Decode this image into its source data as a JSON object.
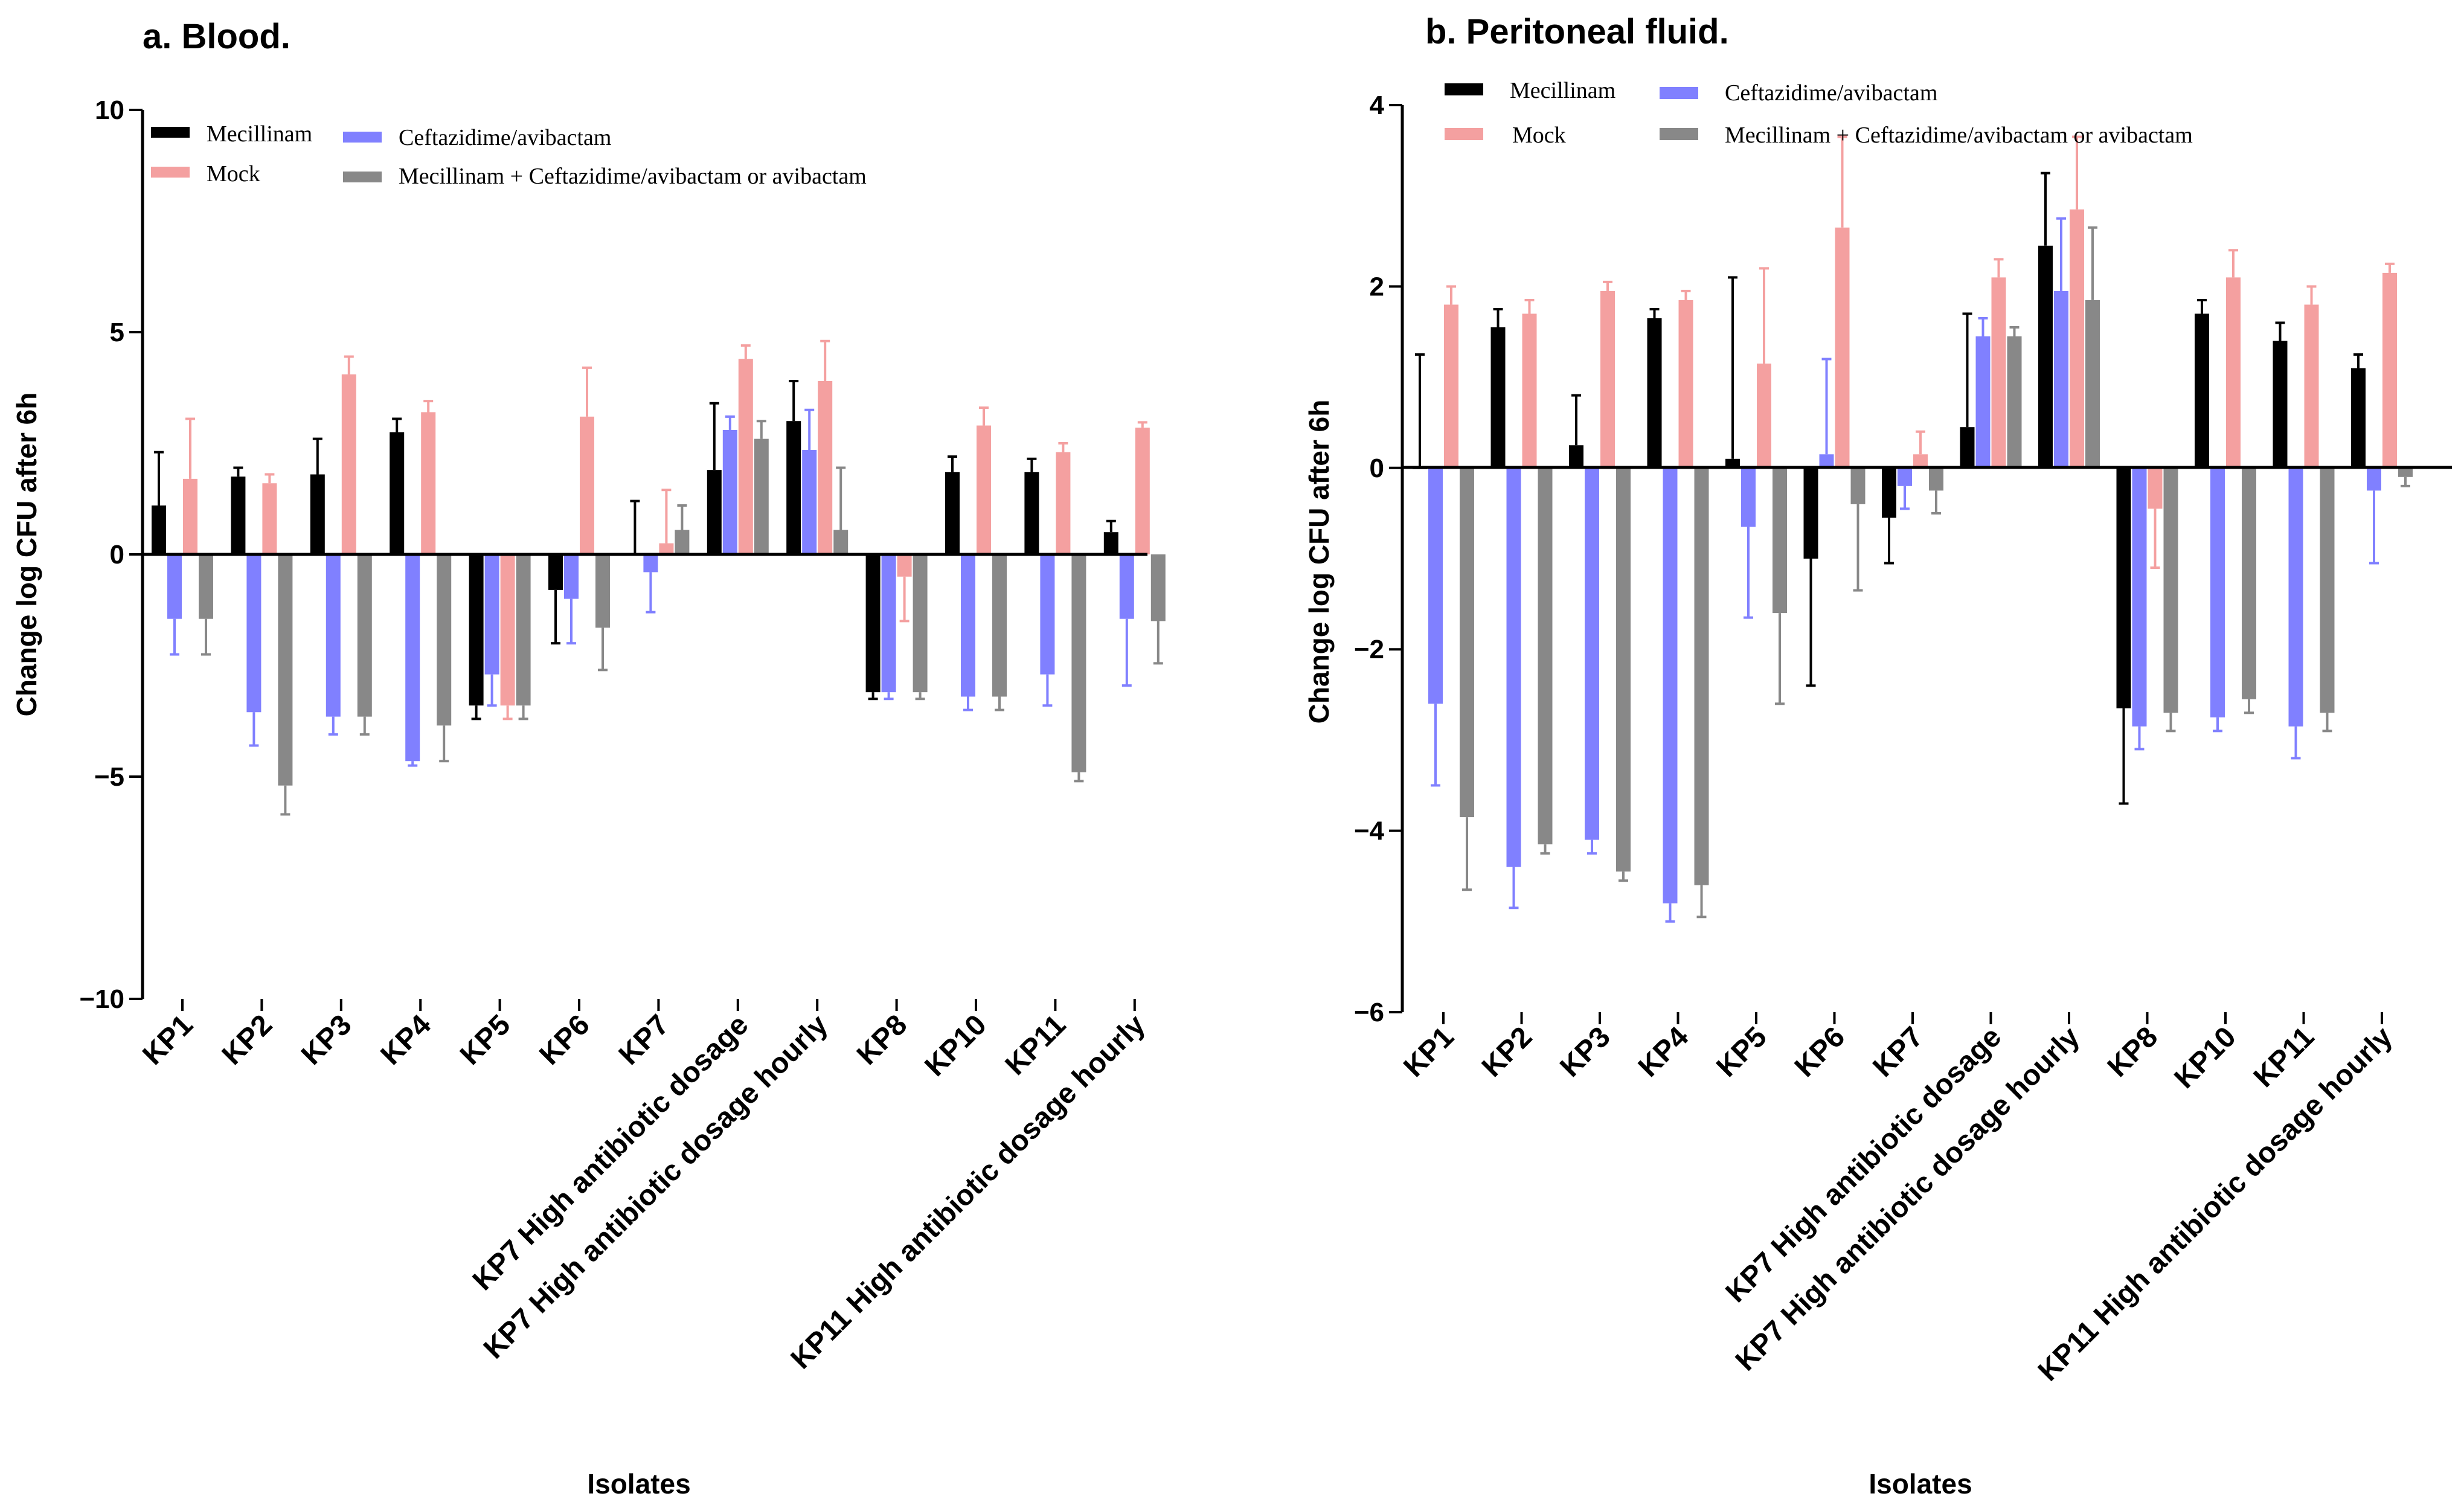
{
  "chart_data": [
    {
      "type": "bar",
      "title": "a. Blood.",
      "xlabel": "Isolates",
      "ylabel": "Change log CFU after 6h",
      "ylim": [
        -10,
        10
      ],
      "yticks": [
        "−10",
        "−5",
        "0",
        "5",
        "10"
      ],
      "ytick_values": [
        -10,
        -5,
        0,
        5,
        10
      ],
      "categories": [
        "KP1",
        "KP2",
        "KP3",
        "KP4",
        "KP5",
        "KP6",
        "KP7",
        "KP7 High antibiotic dosage",
        "KP7 High antibiotic dosage hourly",
        "KP8",
        "KP10",
        "KP11",
        "KP11 High antibiotic dosage hourly"
      ],
      "legend": {
        "position": "top-left",
        "order": [
          "Mecillinam",
          "Ceftazidime/avibactam",
          "Mock",
          "Mecillinam + Ceftazidime/avibactam or avibactam"
        ]
      },
      "series": [
        {
          "name": "Mecillinam",
          "color": "#000000",
          "values": [
            1.1,
            1.75,
            1.8,
            2.75,
            -3.4,
            -0.8,
            0.0,
            1.9,
            3.0,
            -3.1,
            1.85,
            1.85,
            0.5
          ],
          "errors": [
            1.2,
            0.2,
            0.8,
            0.3,
            0.3,
            1.2,
            1.2,
            1.5,
            0.9,
            0.15,
            0.35,
            0.3,
            0.25
          ]
        },
        {
          "name": "Ceftazidime/avibactam",
          "color": "#8080ff",
          "values": [
            -1.45,
            -3.55,
            -3.65,
            -4.65,
            -2.7,
            -1.0,
            -0.4,
            2.8,
            2.35,
            -3.1,
            -3.2,
            -2.7,
            -1.45
          ],
          "errors": [
            0.8,
            0.75,
            0.4,
            0.1,
            0.7,
            1.0,
            0.9,
            0.3,
            0.9,
            0.15,
            0.3,
            0.7,
            1.5
          ]
        },
        {
          "name": "Mock",
          "color": "#f4a0a0",
          "values": [
            1.7,
            1.6,
            4.05,
            3.2,
            -3.4,
            3.1,
            0.25,
            4.4,
            3.9,
            -0.5,
            2.9,
            2.3,
            2.85
          ],
          "errors": [
            1.35,
            0.2,
            0.4,
            0.25,
            0.3,
            1.1,
            1.2,
            0.3,
            0.9,
            1.0,
            0.4,
            0.2,
            0.12
          ]
        },
        {
          "name": "Mecillinam + Ceftazidime/avibactam or avibactam",
          "color": "#888888",
          "values": [
            -1.45,
            -5.2,
            -3.65,
            -3.85,
            -3.4,
            -1.65,
            0.55,
            2.6,
            0.55,
            -3.1,
            -3.2,
            -4.9,
            -1.5
          ],
          "errors": [
            0.8,
            0.65,
            0.4,
            0.8,
            0.3,
            0.95,
            0.55,
            0.4,
            1.4,
            0.15,
            0.3,
            0.2,
            0.95
          ]
        }
      ]
    },
    {
      "type": "bar",
      "title": "b. Peritoneal fluid.",
      "xlabel": "Isolates",
      "ylabel": "Change log CFU after 6h",
      "ylim": [
        -6,
        4
      ],
      "yticks": [
        "−6",
        "−4",
        "−2",
        "0",
        "2",
        "4"
      ],
      "ytick_values": [
        -6,
        -4,
        -2,
        0,
        2,
        4
      ],
      "categories": [
        "KP1",
        "KP2",
        "KP3",
        "KP4",
        "KP5",
        "KP6",
        "KP7",
        "KP7 High antibiotic dosage",
        "KP7 High antibiotic dosage hourly",
        "KP8",
        "KP10",
        "KP11",
        "KP11 High antibiotic dosage hourly"
      ],
      "legend": {
        "position": "top-left",
        "order": [
          "Mecillinam",
          "Ceftazidime/avibactam",
          "Mock",
          "Mecillinam + Ceftazidime/avibactam or avibactam"
        ]
      },
      "series": [
        {
          "name": "Mecillinam",
          "color": "#000000",
          "values": [
            0.0,
            1.55,
            0.25,
            1.65,
            0.1,
            -1.0,
            -0.55,
            0.45,
            2.45,
            -2.65,
            1.7,
            1.4,
            1.1
          ],
          "errors": [
            1.25,
            0.2,
            0.55,
            0.1,
            2.0,
            1.4,
            0.5,
            1.25,
            0.8,
            1.05,
            0.15,
            0.2,
            0.15
          ]
        },
        {
          "name": "Ceftazidime/avibactam",
          "color": "#8080ff",
          "values": [
            -2.6,
            -4.4,
            -4.1,
            -4.8,
            -0.65,
            0.15,
            -0.2,
            1.45,
            1.95,
            -2.85,
            -2.75,
            -2.85,
            -0.25
          ],
          "errors": [
            0.9,
            0.45,
            0.15,
            0.2,
            1.0,
            1.05,
            0.25,
            0.2,
            0.8,
            0.25,
            0.15,
            0.35,
            0.8
          ]
        },
        {
          "name": "Mock",
          "color": "#f4a0a0",
          "values": [
            1.8,
            1.7,
            1.95,
            1.85,
            1.15,
            2.65,
            0.15,
            2.1,
            2.85,
            -0.45,
            2.1,
            1.8,
            2.15
          ],
          "errors": [
            0.2,
            0.15,
            0.1,
            0.1,
            1.05,
            1.0,
            0.25,
            0.2,
            0.8,
            0.65,
            0.3,
            0.2,
            0.1
          ]
        },
        {
          "name": "Mecillinam + Ceftazidime/avibactam or avibactam",
          "color": "#888888",
          "values": [
            -3.85,
            -4.15,
            -4.45,
            -4.6,
            -1.6,
            -0.4,
            -0.25,
            1.45,
            1.85,
            -2.7,
            -2.55,
            -2.7,
            -0.1
          ],
          "errors": [
            0.8,
            0.1,
            0.1,
            0.35,
            1.0,
            0.95,
            0.25,
            0.1,
            0.8,
            0.2,
            0.15,
            0.2,
            0.1
          ]
        }
      ]
    }
  ]
}
